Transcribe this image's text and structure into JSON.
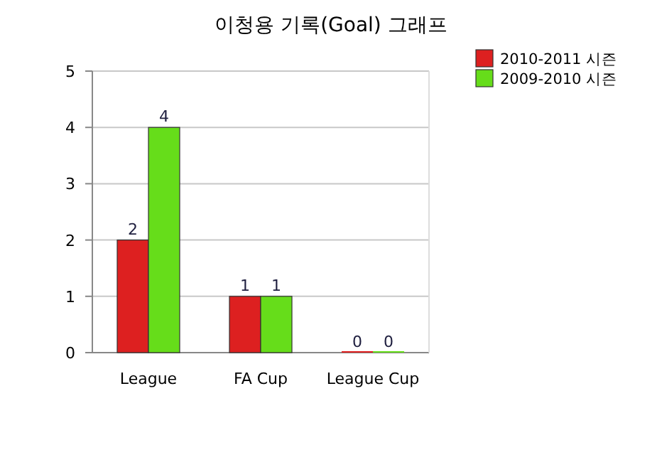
{
  "chart_data": {
    "type": "bar",
    "title": "이청용 기록(Goal) 그래프",
    "categories": [
      "League",
      "FA Cup",
      "League Cup"
    ],
    "series": [
      {
        "name": "2010-2011 시즌",
        "color": "#dd2020",
        "values": [
          2,
          1,
          0
        ]
      },
      {
        "name": "2009-2010 시즌",
        "color": "#66dd1a",
        "values": [
          4,
          1,
          0
        ]
      }
    ],
    "ylim": [
      0,
      5
    ],
    "yticks": [
      0,
      1,
      2,
      3,
      4,
      5
    ],
    "grid": "y",
    "legend": "top right",
    "data_labels": true
  }
}
